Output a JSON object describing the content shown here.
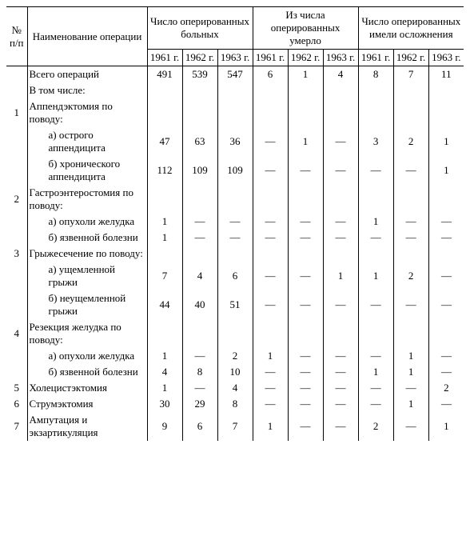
{
  "headers": {
    "idx": "№ п/п",
    "name": "Наименование операции",
    "group1": "Число оперированных больных",
    "group2": "Из числа оперированных умерло",
    "group3": "Число оперированных имели осложнения",
    "y1a": "1961 г.",
    "y1b": "1962 г.",
    "y1c": "1963 г.",
    "y2a": "1961 г.",
    "y2b": "1962 г.",
    "y2c": "1963 г.",
    "y3a": "1961 г.",
    "y3b": "1962 г.",
    "y3c": "1963 г."
  },
  "rows": {
    "total": {
      "label": "Всего операций",
      "a": "491",
      "b": "539",
      "c": "547",
      "d": "6",
      "e": "1",
      "f": "4",
      "g": "8",
      "h": "7",
      "i": "11"
    },
    "incl": {
      "label": "В том числе:"
    },
    "r1": {
      "idx": "1",
      "label": "Аппендэктомия по поводу:"
    },
    "r1a": {
      "label": "а) острого аппендицита",
      "a": "47",
      "b": "63",
      "c": "36",
      "d": "—",
      "e": "1",
      "f": "—",
      "g": "3",
      "h": "2",
      "i": "1"
    },
    "r1b": {
      "label": "б) хронического аппендицита",
      "a": "112",
      "b": "109",
      "c": "109",
      "d": "—",
      "e": "—",
      "f": "—",
      "g": "—",
      "h": "—",
      "i": "1"
    },
    "r2": {
      "idx": "2",
      "label": "Гастроэнтеростомия по поводу:"
    },
    "r2a": {
      "label": "а) опухоли желудка",
      "a": "1",
      "b": "—",
      "c": "—",
      "d": "—",
      "e": "—",
      "f": "—",
      "g": "1",
      "h": "—",
      "i": "—"
    },
    "r2b": {
      "label": "б) язвенной болезни",
      "a": "1",
      "b": "—",
      "c": "—",
      "d": "—",
      "e": "—",
      "f": "—",
      "g": "—",
      "h": "—",
      "i": "—"
    },
    "r3": {
      "idx": "3",
      "label": "Грыжесечение по поводу:"
    },
    "r3a": {
      "label": "а) ущемленной грыжи",
      "a": "7",
      "b": "4",
      "c": "6",
      "d": "—",
      "e": "—",
      "f": "1",
      "g": "1",
      "h": "2",
      "i": "—"
    },
    "r3b": {
      "label": "б) неущемленной грыжи",
      "a": "44",
      "b": "40",
      "c": "51",
      "d": "—",
      "e": "—",
      "f": "—",
      "g": "—",
      "h": "—",
      "i": "—"
    },
    "r4": {
      "idx": "4",
      "label": "Резекция желудка по поводу:"
    },
    "r4a": {
      "label": "а) опухоли желудка",
      "a": "1",
      "b": "—",
      "c": "2",
      "d": "1",
      "e": "—",
      "f": "—",
      "g": "—",
      "h": "1",
      "i": "—"
    },
    "r4b": {
      "label": "б) язвенной болезни",
      "a": "4",
      "b": "8",
      "c": "10",
      "d": "—",
      "e": "—",
      "f": "—",
      "g": "1",
      "h": "1",
      "i": "—"
    },
    "r5": {
      "idx": "5",
      "label": "Холецистэктомия",
      "a": "1",
      "b": "—",
      "c": "4",
      "d": "—",
      "e": "—",
      "f": "—",
      "g": "—",
      "h": "—",
      "i": "2"
    },
    "r6": {
      "idx": "6",
      "label": "Струмэктомия",
      "a": "30",
      "b": "29",
      "c": "8",
      "d": "—",
      "e": "—",
      "f": "—",
      "g": "—",
      "h": "1",
      "i": "—"
    },
    "r7": {
      "idx": "7",
      "label": "Ампутация и экзартикуляция",
      "a": "9",
      "b": "6",
      "c": "7",
      "d": "1",
      "e": "—",
      "f": "—",
      "g": "2",
      "h": "—",
      "i": "1"
    }
  }
}
